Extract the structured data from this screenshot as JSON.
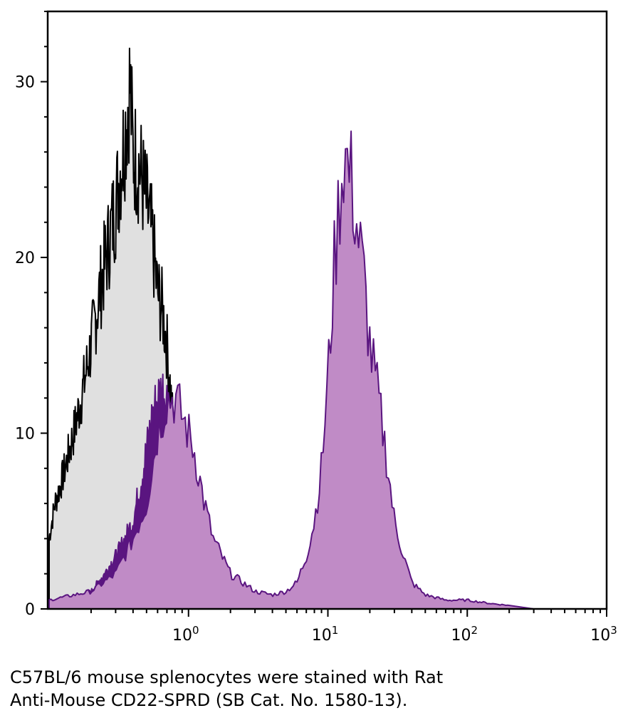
{
  "chart_data": {
    "type": "area",
    "x_scale": "log",
    "xlim": [
      0.1,
      1000
    ],
    "ylim": [
      0,
      34
    ],
    "x_ticks": [
      {
        "value": 1,
        "base": "10",
        "exp": "0"
      },
      {
        "value": 10,
        "base": "10",
        "exp": "1"
      },
      {
        "value": 100,
        "base": "10",
        "exp": "2"
      },
      {
        "value": 1000,
        "base": "10",
        "exp": "3"
      }
    ],
    "y_ticks": [
      {
        "value": 0,
        "label": "0"
      },
      {
        "value": 10,
        "label": "10"
      },
      {
        "value": 20,
        "label": "20"
      },
      {
        "value": 30,
        "label": "30"
      }
    ],
    "grid": false,
    "series": [
      {
        "fill": "#e0e0e0",
        "stroke": "#000000",
        "points": [
          [
            0.1,
            4
          ],
          [
            0.11,
            6
          ],
          [
            0.12,
            7
          ],
          [
            0.13,
            8
          ],
          [
            0.15,
            10
          ],
          [
            0.17,
            12
          ],
          [
            0.2,
            15
          ],
          [
            0.23,
            18
          ],
          [
            0.27,
            21
          ],
          [
            0.3,
            23
          ],
          [
            0.35,
            27
          ],
          [
            0.38,
            30
          ],
          [
            0.4,
            26
          ],
          [
            0.45,
            25
          ],
          [
            0.5,
            23
          ],
          [
            0.55,
            21
          ],
          [
            0.6,
            18
          ],
          [
            0.65,
            17
          ],
          [
            0.7,
            15
          ],
          [
            0.75,
            12
          ],
          [
            0.8,
            9
          ],
          [
            0.85,
            6
          ],
          [
            0.9,
            3
          ],
          [
            1.0,
            1
          ],
          [
            1.1,
            0.3
          ],
          [
            1.2,
            0
          ]
        ]
      },
      {
        "fill": "#5a1580",
        "stroke": "#5a1580",
        "points": [
          [
            0.1,
            0
          ],
          [
            0.15,
            0.5
          ],
          [
            0.2,
            1
          ],
          [
            0.25,
            2
          ],
          [
            0.3,
            3
          ],
          [
            0.35,
            4
          ],
          [
            0.4,
            5
          ],
          [
            0.45,
            7
          ],
          [
            0.5,
            9
          ],
          [
            0.55,
            11
          ],
          [
            0.6,
            12
          ],
          [
            0.65,
            12.5
          ],
          [
            0.7,
            12
          ],
          [
            0.75,
            10
          ],
          [
            0.8,
            8
          ],
          [
            0.9,
            5
          ],
          [
            1.0,
            3
          ],
          [
            1.2,
            1
          ],
          [
            1.5,
            0.3
          ],
          [
            2.0,
            0
          ]
        ]
      },
      {
        "fill": "#c08bc6",
        "stroke": "#5a1580",
        "points": [
          [
            0.1,
            0.5
          ],
          [
            0.2,
            1
          ],
          [
            0.3,
            2
          ],
          [
            0.4,
            4
          ],
          [
            0.5,
            6
          ],
          [
            0.6,
            10
          ],
          [
            0.7,
            12
          ],
          [
            0.8,
            12
          ],
          [
            0.9,
            11
          ],
          [
            1.0,
            10
          ],
          [
            1.1,
            9
          ],
          [
            1.3,
            6
          ],
          [
            1.5,
            4
          ],
          [
            2.0,
            2
          ],
          [
            3.0,
            1
          ],
          [
            4.0,
            0.8
          ],
          [
            5.0,
            1
          ],
          [
            6.0,
            1.5
          ],
          [
            7.0,
            3
          ],
          [
            8.0,
            5
          ],
          [
            9.0,
            8
          ],
          [
            10,
            13
          ],
          [
            11,
            19
          ],
          [
            12,
            23
          ],
          [
            13,
            26
          ],
          [
            14,
            25
          ],
          [
            15,
            24
          ],
          [
            16,
            22
          ],
          [
            18,
            19
          ],
          [
            20,
            15
          ],
          [
            23,
            12
          ],
          [
            26,
            9
          ],
          [
            30,
            5
          ],
          [
            35,
            3
          ],
          [
            40,
            1.5
          ],
          [
            50,
            0.8
          ],
          [
            70,
            0.5
          ],
          [
            100,
            0.5
          ],
          [
            150,
            0.3
          ],
          [
            200,
            0.2
          ],
          [
            300,
            0
          ]
        ]
      }
    ]
  },
  "caption": {
    "line1": "C57BL/6 mouse splenocytes were stained with Rat",
    "line2": "Anti-Mouse CD22-SPRD (SB Cat. No. 1580-13)."
  }
}
